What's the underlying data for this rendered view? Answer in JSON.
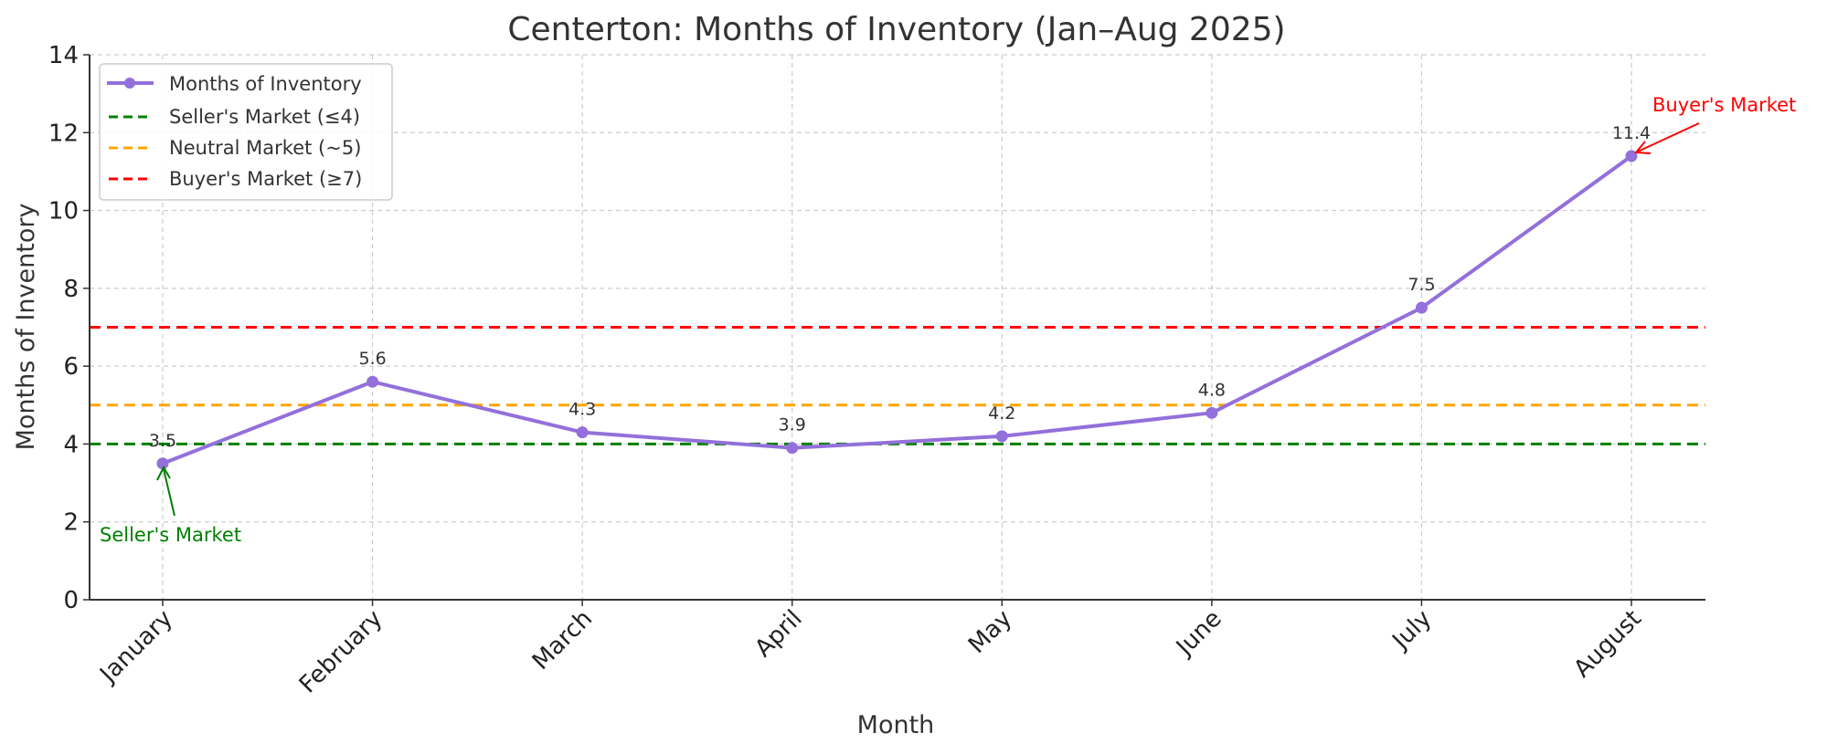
{
  "chart_data": {
    "type": "line",
    "title": "Centerton: Months of Inventory (Jan–Aug 2025)",
    "xlabel": "Month",
    "ylabel": "Months of Inventory",
    "categories": [
      "January",
      "February",
      "March",
      "April",
      "May",
      "June",
      "July",
      "August"
    ],
    "series": [
      {
        "name": "Months of Inventory",
        "values": [
          3.5,
          5.6,
          4.3,
          3.9,
          4.2,
          4.8,
          7.5,
          11.4
        ],
        "color": "#9370DB"
      }
    ],
    "data_labels": [
      "3.5",
      "5.6",
      "4.3",
      "3.9",
      "4.2",
      "4.8",
      "7.5",
      "11.4"
    ],
    "reference_lines": [
      {
        "name": "Seller's Market (≤4)",
        "y": 4,
        "color": "#008000"
      },
      {
        "name": "Neutral Market (~5)",
        "y": 5,
        "color": "#FFA500"
      },
      {
        "name": "Buyer's Market (≥7)",
        "y": 7,
        "color": "#FF0000"
      }
    ],
    "annotations": [
      {
        "text": "Seller's Market",
        "category": "January",
        "value": 3.5,
        "color": "#008000"
      },
      {
        "text": "Buyer's Market",
        "category": "August",
        "value": 11.4,
        "color": "#FF0000"
      }
    ],
    "ylim": [
      0,
      14
    ],
    "yticks": [
      "0",
      "2",
      "4",
      "6",
      "8",
      "10",
      "12",
      "14"
    ],
    "grid": true,
    "legend_position": "top-left"
  }
}
